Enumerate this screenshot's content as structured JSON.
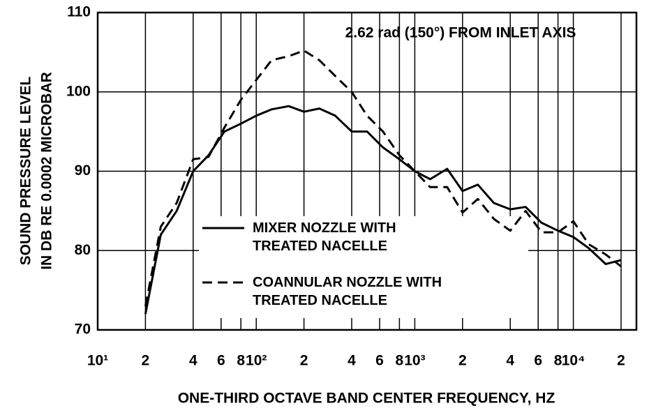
{
  "chart_data": {
    "type": "line",
    "annotation": "2.62 rad (150°) FROM INLET AXIS",
    "xlabel": "ONE-THIRD OCTAVE BAND CENTER FREQUENCY, HZ",
    "ylabel": [
      "SOUND PRESSURE LEVEL",
      "IN DB RE 0.0002 MICROBAR"
    ],
    "xscale": "log",
    "grid": true,
    "xlim": [
      10,
      25000
    ],
    "ylim": [
      70,
      110
    ],
    "yticks": [
      70,
      80,
      90,
      100,
      110
    ],
    "xticks": [
      {
        "value": 10,
        "label": "10¹"
      },
      {
        "value": 20,
        "label": "2"
      },
      {
        "value": 40,
        "label": "4"
      },
      {
        "value": 60,
        "label": "6"
      },
      {
        "value": 80,
        "label": "8"
      },
      {
        "value": 100,
        "label": "10²"
      },
      {
        "value": 200,
        "label": "2"
      },
      {
        "value": 400,
        "label": "4"
      },
      {
        "value": 600,
        "label": "6"
      },
      {
        "value": 800,
        "label": "8"
      },
      {
        "value": 1000,
        "label": "10³"
      },
      {
        "value": 2000,
        "label": "2"
      },
      {
        "value": 4000,
        "label": "4"
      },
      {
        "value": 6000,
        "label": "6"
      },
      {
        "value": 8000,
        "label": "8"
      },
      {
        "value": 10000,
        "label": "10⁴"
      },
      {
        "value": 20000,
        "label": "2"
      }
    ],
    "x": [
      20,
      25,
      31.5,
      40,
      50,
      63,
      80,
      100,
      125,
      160,
      200,
      250,
      315,
      400,
      500,
      630,
      800,
      1000,
      1250,
      1600,
      2000,
      2500,
      3150,
      4000,
      5000,
      6300,
      8000,
      10000,
      12500,
      16000,
      20000
    ],
    "series": [
      {
        "name": "MIXER NOZZLE WITH TREATED NACELLE",
        "color": "#000000",
        "dash": false,
        "values": [
          72,
          82,
          85,
          90,
          92,
          95,
          96,
          97,
          97.8,
          98.2,
          97.5,
          97.9,
          97,
          95,
          95,
          93,
          91.5,
          90,
          89,
          90.3,
          87.5,
          88.3,
          86,
          85.2,
          85.5,
          83.5,
          82.5,
          81.7,
          80.3,
          78.3,
          78.8
        ]
      },
      {
        "name": "COANNULAR NOZZLE WITH TREATED NACELLE",
        "color": "#000000",
        "dash": true,
        "values": [
          73,
          83,
          86,
          91.5,
          91.8,
          95.5,
          99,
          101.5,
          104,
          104.5,
          105.2,
          104,
          102,
          100,
          97,
          95,
          92,
          90,
          88,
          88,
          84.8,
          86.5,
          84,
          82.5,
          85,
          82.3,
          82.3,
          83.7,
          80.8,
          79.5,
          78
        ]
      }
    ]
  }
}
